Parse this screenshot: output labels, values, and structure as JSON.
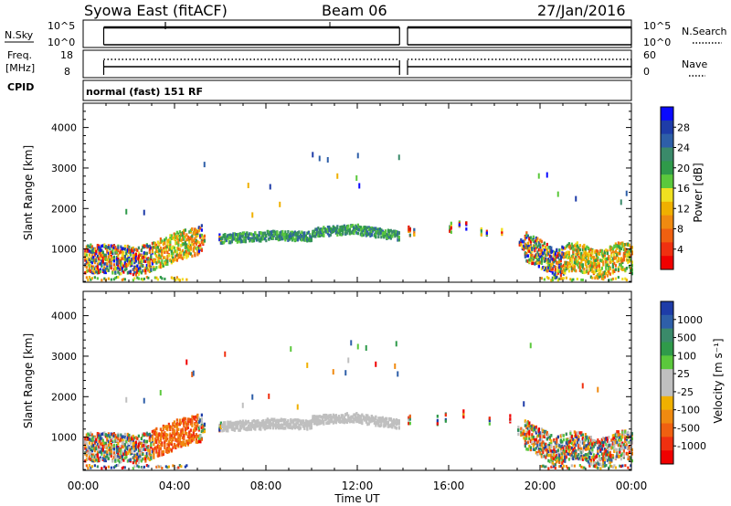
{
  "header": {
    "station": "Syowa East (fitACF)",
    "beam": "Beam 06",
    "date": "27/Jan/2016"
  },
  "top_panels": {
    "nsky_label": "N.Sky",
    "nsky_ticks": [
      "10^5",
      "10^0"
    ],
    "nsearch_label": "N.Search",
    "nsearch_ticks": [
      "10^5",
      "10^0"
    ],
    "freq_label": "Freq.",
    "freq_unit": "[MHz]",
    "freq_ticks": [
      "18",
      "8"
    ],
    "nave_label": "Nave",
    "nave_ticks": [
      "60",
      "0"
    ],
    "cpid_label": "CPID",
    "cpid_text": "normal (fast) 151 RF",
    "data_gap_hours": [
      13.85,
      14.2
    ]
  },
  "chart_data": [
    {
      "type": "heatmap",
      "title": "",
      "ylabel": "Slant Range [km]",
      "xlim": [
        0,
        24
      ],
      "ylim": [
        180,
        4600
      ],
      "yticks": [
        "1000",
        "2000",
        "3000",
        "4000"
      ],
      "colorbar": {
        "label": "Power [dB]",
        "ticks": [
          "4",
          "8",
          "12",
          "16",
          "20",
          "24",
          "28"
        ],
        "colors": [
          "#0a0aff",
          "#1e3ca8",
          "#2e5fa8",
          "#3a8a6a",
          "#2f9a4a",
          "#5bc83c",
          "#f0e020",
          "#f0b000",
          "#f08a10",
          "#f06010",
          "#f03010",
          "#f00000"
        ]
      }
    },
    {
      "type": "heatmap",
      "title": "",
      "ylabel": "Slant Range [km]",
      "xlim": [
        0,
        24
      ],
      "ylim": [
        180,
        4600
      ],
      "yticks": [
        "1000",
        "2000",
        "3000",
        "4000"
      ],
      "colorbar": {
        "label": "Velocity [m s⁻¹]",
        "ticks": [
          "1000",
          "500",
          "100",
          "25",
          "-25",
          "-100",
          "-500",
          "-1000"
        ],
        "colors": [
          "#1e3ca8",
          "#2e5fa8",
          "#3a8a6a",
          "#2f9a4a",
          "#5bc83c",
          "#bfbfbf",
          "#bfbfbf",
          "#f0b000",
          "#f08a10",
          "#f06010",
          "#f03010",
          "#f00000"
        ]
      }
    }
  ],
  "xaxis": {
    "label": "Time UT",
    "ticks": [
      "00:00",
      "04:00",
      "08:00",
      "12:00",
      "16:00",
      "20:00",
      "00:00"
    ]
  }
}
